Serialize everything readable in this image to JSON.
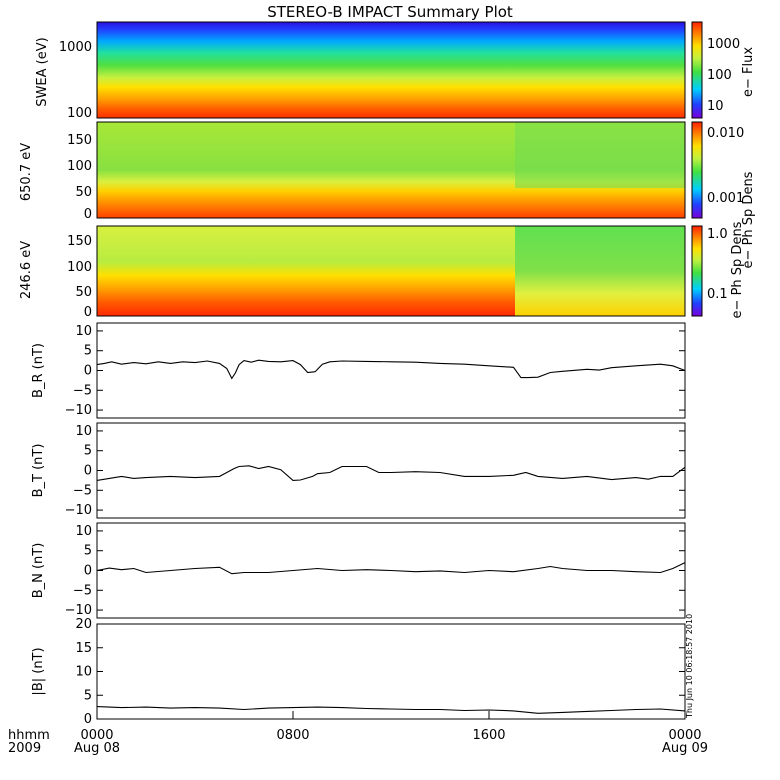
{
  "title": "STEREO-B IMPACT Summary Plot",
  "footer": {
    "time_label": "hhmm",
    "year_label": "2009",
    "x_ticks": [
      {
        "time": "0000",
        "date": "Aug 08",
        "hour": 0
      },
      {
        "time": "0800",
        "date": "",
        "hour": 8
      },
      {
        "time": "1600",
        "date": "",
        "hour": 16
      },
      {
        "time": "0000",
        "date": "Aug 09",
        "hour": 24
      }
    ],
    "x_range_hours": [
      0,
      24
    ],
    "timestamp": "Thu Jun 10 06:18:57 2010"
  },
  "colors": {
    "line": "#000000",
    "colormap": [
      "#7a00d9",
      "#2040ff",
      "#00d0ff",
      "#40e040",
      "#c0f040",
      "#ffe000",
      "#ff8000",
      "#ff2000"
    ]
  },
  "chart_data": [
    {
      "type": "heatmap",
      "ylabel": "SWEA (eV)",
      "y_scale": "log",
      "y_ticks": [
        "1000",
        "100"
      ],
      "colorbar": {
        "label": "e− Flux",
        "scale": "log",
        "ticks": [
          "1000",
          "100",
          "10"
        ]
      }
    },
    {
      "type": "heatmap",
      "ylabel": "650.7 eV",
      "y_ticks": [
        "150",
        "100",
        "50",
        "0"
      ],
      "ylim": [
        0,
        180
      ],
      "colorbar": {
        "label": "e− Ph Sp Dens",
        "scale": "log",
        "ticks": [
          "0.010",
          "0.001"
        ]
      }
    },
    {
      "type": "heatmap",
      "ylabel": "246.6 eV",
      "y_ticks": [
        "150",
        "100",
        "50",
        "0"
      ],
      "ylim": [
        0,
        180
      ],
      "colorbar": {
        "label": "e− Ph Sp Dens",
        "scale": "log",
        "ticks": [
          "1.0",
          "0.1"
        ]
      }
    },
    {
      "type": "line",
      "ylabel": "B_R (nT)",
      "ylim": [
        -12,
        12
      ],
      "y_ticks": [
        "10",
        "5",
        "0",
        "−5",
        "−10"
      ],
      "x": [
        0,
        0.3,
        0.6,
        1,
        1.5,
        2,
        2.5,
        3,
        3.5,
        4,
        4.5,
        5,
        5.3,
        5.5,
        5.65,
        5.8,
        6,
        6.3,
        6.6,
        7,
        7.5,
        8,
        8.3,
        8.6,
        8.9,
        9.2,
        9.5,
        10,
        11,
        12,
        13,
        14,
        15,
        16,
        17,
        17.3,
        17.6,
        18,
        18.5,
        19,
        20,
        20.5,
        21,
        22,
        23,
        23.5,
        24
      ],
      "values": [
        1.5,
        1.8,
        2.2,
        1.6,
        2,
        1.7,
        2.2,
        1.8,
        2.2,
        2,
        2.4,
        1.8,
        0.5,
        -2,
        -0.6,
        1.5,
        2.5,
        2.1,
        2.6,
        2.3,
        2.2,
        2.5,
        1.5,
        -0.5,
        -0.3,
        1.6,
        2.2,
        2.4,
        2.3,
        2.2,
        2.1,
        1.8,
        1.6,
        1.2,
        0.8,
        -1.8,
        -1.8,
        -1.7,
        -0.5,
        -0.2,
        0.3,
        0.1,
        0.7,
        1.2,
        1.6,
        1.2,
        0
      ]
    },
    {
      "type": "line",
      "ylabel": "B_T (nT)",
      "ylim": [
        -12,
        12
      ],
      "y_ticks": [
        "10",
        "5",
        "0",
        "−5",
        "−10"
      ],
      "x": [
        0,
        0.5,
        1,
        1.5,
        2,
        3,
        4,
        5,
        5.3,
        5.6,
        5.8,
        6.2,
        6.6,
        7,
        7.5,
        8,
        8.3,
        8.8,
        9,
        9.5,
        10,
        11,
        11.5,
        12,
        13,
        14,
        15,
        16,
        17,
        17.5,
        18,
        19,
        20,
        21,
        22,
        22.5,
        23,
        23.5,
        24
      ],
      "values": [
        -2.5,
        -2,
        -1.5,
        -2,
        -1.8,
        -1.5,
        -1.8,
        -1.5,
        -0.5,
        0.5,
        1,
        1.2,
        0.5,
        1,
        0.2,
        -2.5,
        -2.4,
        -1.5,
        -0.8,
        -0.5,
        1,
        1,
        -0.5,
        -0.5,
        -0.3,
        -0.5,
        -1.5,
        -1.5,
        -1.2,
        -0.5,
        -1.5,
        -2,
        -1.5,
        -2.3,
        -1.8,
        -2.2,
        -1.5,
        -1.5,
        0.8
      ]
    },
    {
      "type": "line",
      "ylabel": "B_N (nT)",
      "ylim": [
        -12,
        12
      ],
      "y_ticks": [
        "10",
        "5",
        "0",
        "−5",
        "−10"
      ],
      "x": [
        0,
        0.5,
        1,
        1.5,
        2,
        3,
        4,
        5,
        5.5,
        6,
        7,
        8,
        9,
        10,
        11,
        12,
        13,
        14,
        15,
        16,
        17,
        18,
        18.5,
        19,
        20,
        21,
        22,
        23,
        23.5,
        24
      ],
      "values": [
        0,
        0.6,
        0.2,
        0.5,
        -0.5,
        0,
        0.5,
        0.8,
        -0.8,
        -0.5,
        -0.5,
        0,
        0.5,
        0,
        0.2,
        0,
        -0.3,
        -0.1,
        -0.5,
        0,
        -0.3,
        0.5,
        1,
        0.5,
        0,
        0,
        -0.3,
        -0.5,
        0.5,
        2
      ]
    },
    {
      "type": "line",
      "ylabel": "|B| (nT)",
      "ylim": [
        0,
        20
      ],
      "y_ticks": [
        "20",
        "15",
        "10",
        "5",
        "0"
      ],
      "x": [
        0,
        1,
        2,
        3,
        4,
        5,
        6,
        7,
        8,
        9,
        10,
        11,
        12,
        13,
        14,
        15,
        16,
        17,
        18,
        19,
        20,
        21,
        22,
        23,
        24
      ],
      "values": [
        2.6,
        2.4,
        2.5,
        2.3,
        2.4,
        2.3,
        2.0,
        2.3,
        2.4,
        2.5,
        2.4,
        2.2,
        2.1,
        2.0,
        2.0,
        1.8,
        1.9,
        1.7,
        1.2,
        1.4,
        1.6,
        1.8,
        2.0,
        2.1,
        1.7
      ]
    }
  ]
}
